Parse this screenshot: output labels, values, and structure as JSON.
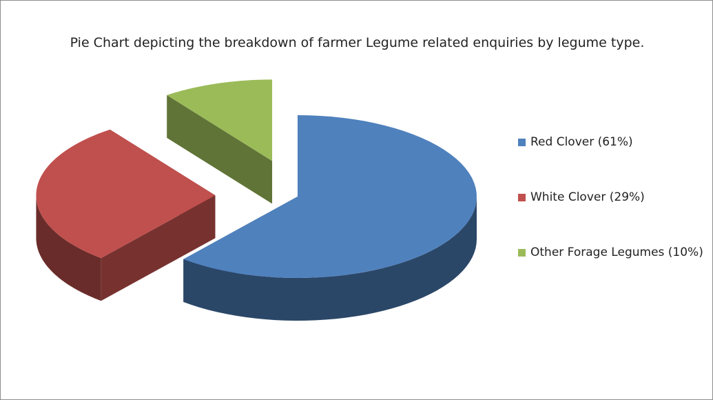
{
  "chart_data": {
    "type": "pie",
    "title": "Pie Chart depicting the breakdown of farmer Legume related enquiries by legume type.",
    "categories": [
      "Red Clover (61%)",
      "White Clover (29%)",
      "Other Forage Legumes (10%)"
    ],
    "values": [
      61,
      29,
      10
    ],
    "colors": [
      "#4f81bd",
      "#c0504d",
      "#9bbb59"
    ],
    "legend": "right"
  }
}
